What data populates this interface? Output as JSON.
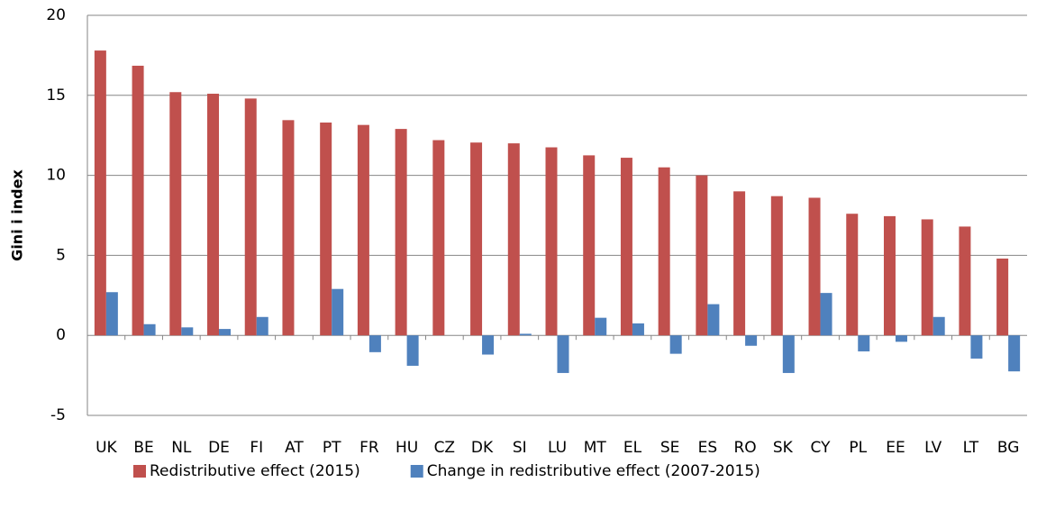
{
  "chart_data": {
    "type": "bar",
    "y_label": "Gini i index",
    "categories": [
      "UK",
      "BE",
      "NL",
      "DE",
      "FI",
      "AT",
      "PT",
      "FR",
      "HU",
      "CZ",
      "DK",
      "SI",
      "LU",
      "MT",
      "EL",
      "SE",
      "ES",
      "RO",
      "SK",
      "CY",
      "PL",
      "EE",
      "LV",
      "LT",
      "BG"
    ],
    "series": [
      {
        "name": "Redistributive effect (2015)",
        "color": "#c0504d",
        "values": [
          17.8,
          16.85,
          15.2,
          15.1,
          14.8,
          13.45,
          13.3,
          13.15,
          12.9,
          12.2,
          12.05,
          12.0,
          11.75,
          11.25,
          11.1,
          10.5,
          10.0,
          9.0,
          8.7,
          8.6,
          7.6,
          7.45,
          7.25,
          6.8,
          4.8
        ]
      },
      {
        "name": "Change in redistributive effect (2007-2015)",
        "color": "#4f81bd",
        "values": [
          2.7,
          0.7,
          0.5,
          0.4,
          1.15,
          0,
          2.9,
          -1.05,
          -1.9,
          0,
          -1.2,
          0.1,
          -2.35,
          1.1,
          0.75,
          -1.15,
          1.95,
          -0.65,
          -2.35,
          2.65,
          -1.0,
          -0.4,
          1.15,
          -1.45,
          -2.25
        ]
      }
    ],
    "ylim": [
      -5,
      20
    ],
    "yticks": [
      -5,
      0,
      5,
      10,
      15,
      20
    ],
    "grid": true,
    "legend": "bottom"
  }
}
